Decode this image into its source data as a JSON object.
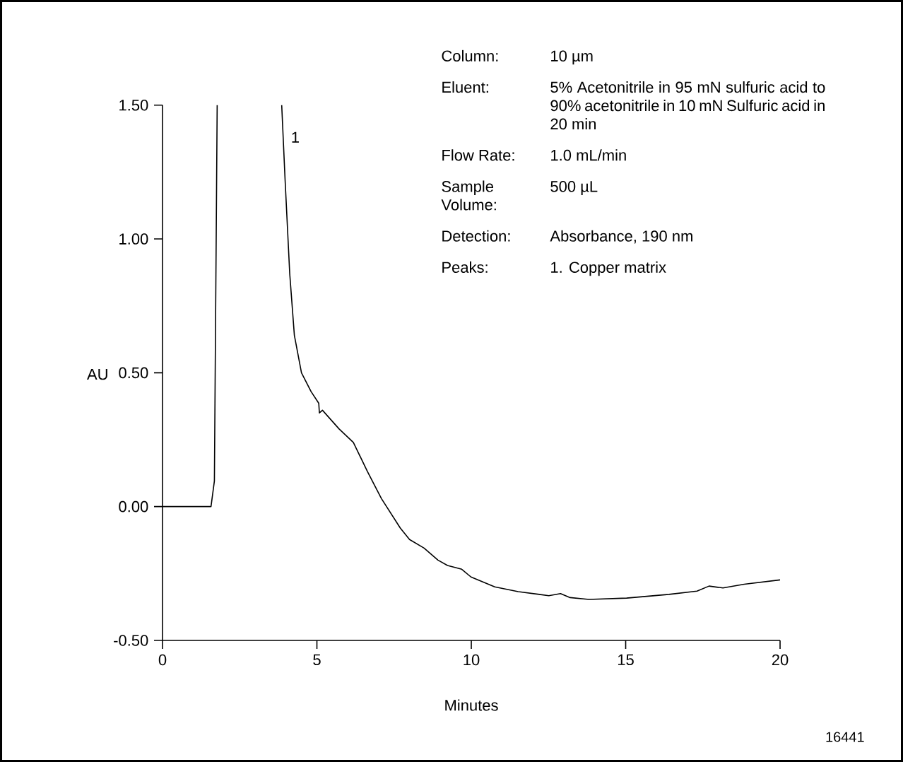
{
  "chart_data": {
    "type": "line",
    "xlabel": "Minutes",
    "ylabel": "AU",
    "color": "#000000",
    "x": [
      0,
      1.57,
      1.68,
      1.77,
      2.8,
      3.86,
      3.97,
      4.12,
      4.27,
      4.5,
      4.81,
      5.06,
      5.08,
      5.18,
      5.72,
      6.18,
      6.64,
      7.09,
      7.7,
      8.0,
      8.47,
      8.92,
      9.23,
      9.69,
      9.99,
      10.76,
      11.52,
      12.2,
      12.51,
      12.89,
      13.2,
      13.81,
      15.03,
      16.4,
      17.31,
      17.7,
      18.15,
      18.84,
      20
    ],
    "values": [
      0,
      0,
      0.096,
      1.5,
      null,
      1.5,
      1.22,
      0.87,
      0.64,
      0.5,
      0.43,
      0.386,
      0.35,
      0.36,
      0.29,
      0.24,
      0.13,
      0.03,
      -0.08,
      -0.123,
      -0.155,
      -0.2,
      -0.22,
      -0.234,
      -0.263,
      -0.3,
      -0.318,
      -0.328,
      -0.333,
      -0.325,
      -0.34,
      -0.347,
      -0.342,
      -0.328,
      -0.316,
      -0.297,
      -0.304,
      -0.29,
      -0.274
    ],
    "xlim": [
      0,
      20
    ],
    "ylim": [
      -0.5,
      1.5
    ],
    "xticks": [
      0,
      5,
      10,
      15,
      20
    ],
    "yticks": [
      {
        "value": -0.5,
        "label": "-0.50"
      },
      {
        "value": 0,
        "label": "0.00"
      },
      {
        "value": 0.5,
        "label": "0.50"
      },
      {
        "value": 1,
        "label": "1.00"
      },
      {
        "value": 1.5,
        "label": "1.50"
      }
    ],
    "annotations": [
      "1",
      "Column:",
      "10 µm",
      "Eluent:",
      "5% Acetonitrile in 95 mN sulfuric acid to 90% acetonitrile in 10 mN Sulfuric acid in 20 min",
      "Flow Rate:",
      "1.0 mL/min",
      "Sample Volume:",
      "500 µL",
      "Detection:",
      "Absorbance, 190 nm",
      "Peaks:",
      "1. Copper matrix",
      "16441"
    ]
  }
}
